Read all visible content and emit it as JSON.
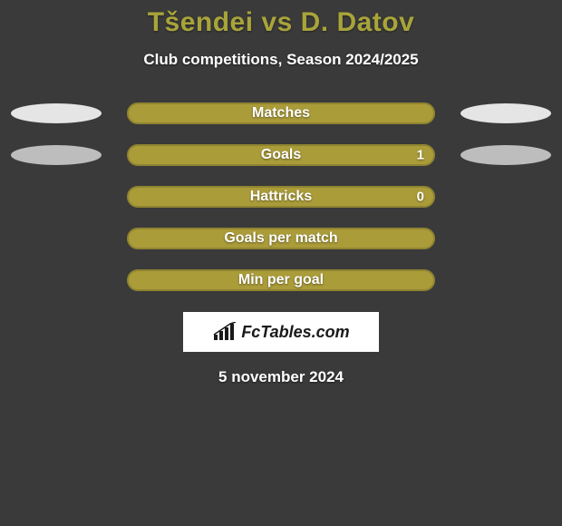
{
  "title": "Tšendei vs D. Datov",
  "subtitle": "Club competitions, Season 2024/2025",
  "date": "5 november 2024",
  "logo_text": "FcTables.com",
  "colors": {
    "background": "#3a3a3a",
    "accent": "#a8a43a",
    "bar_fill": "#ab9c3a",
    "bar_border": "#8f8430",
    "ellipse_light": "#e5e5e5",
    "ellipse_gray": "#bdbdbd",
    "text_light": "#ffffff"
  },
  "rows": [
    {
      "label": "Matches",
      "bar_fill": "#ab9c3a",
      "bar_border": "#8f8430",
      "left_ellipse": "#e5e5e5",
      "right_ellipse": "#e5e5e5",
      "value_right": null
    },
    {
      "label": "Goals",
      "bar_fill": "#ab9c3a",
      "bar_border": "#8f8430",
      "left_ellipse": "#bdbdbd",
      "right_ellipse": "#bdbdbd",
      "value_right": "1"
    },
    {
      "label": "Hattricks",
      "bar_fill": "#ab9c3a",
      "bar_border": "#8f8430",
      "left_ellipse": null,
      "right_ellipse": null,
      "value_right": "0"
    },
    {
      "label": "Goals per match",
      "bar_fill": "#ab9c3a",
      "bar_border": "#8f8430",
      "left_ellipse": null,
      "right_ellipse": null,
      "value_right": null
    },
    {
      "label": "Min per goal",
      "bar_fill": "#ab9c3a",
      "bar_border": "#8f8430",
      "left_ellipse": null,
      "right_ellipse": null,
      "value_right": null
    }
  ]
}
